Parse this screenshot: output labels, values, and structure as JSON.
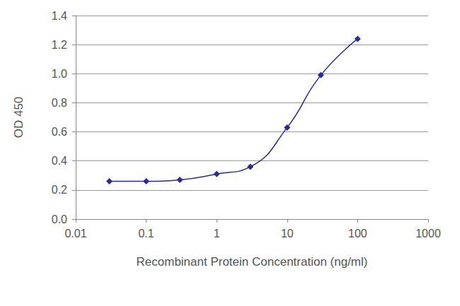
{
  "chart_data": {
    "type": "line",
    "x_label": "Recombinant Protein Concentration (ng/ml)",
    "y_label": "OD 450",
    "series": [
      {
        "name": "OD 450",
        "color": "#2a2a9c",
        "marker": "diamond",
        "line_style": "smooth",
        "x": [
          0.03,
          0.1,
          0.3,
          1,
          3,
          10,
          30,
          100
        ],
        "values": [
          0.26,
          0.26,
          0.27,
          0.31,
          0.36,
          0.63,
          0.99,
          1.24
        ]
      }
    ],
    "log": "x",
    "xlim": [
      0.01,
      1000
    ],
    "xticks": [
      0.01,
      0.1,
      1,
      10,
      100,
      1000
    ],
    "ylim": [
      0,
      1.4
    ],
    "yticks": [
      {
        "value": 0,
        "label": "0.0"
      },
      0.2,
      0.4,
      0.6,
      0.8,
      {
        "value": 1,
        "label": "1.0"
      },
      1.2,
      1.4
    ],
    "grid": true
  }
}
